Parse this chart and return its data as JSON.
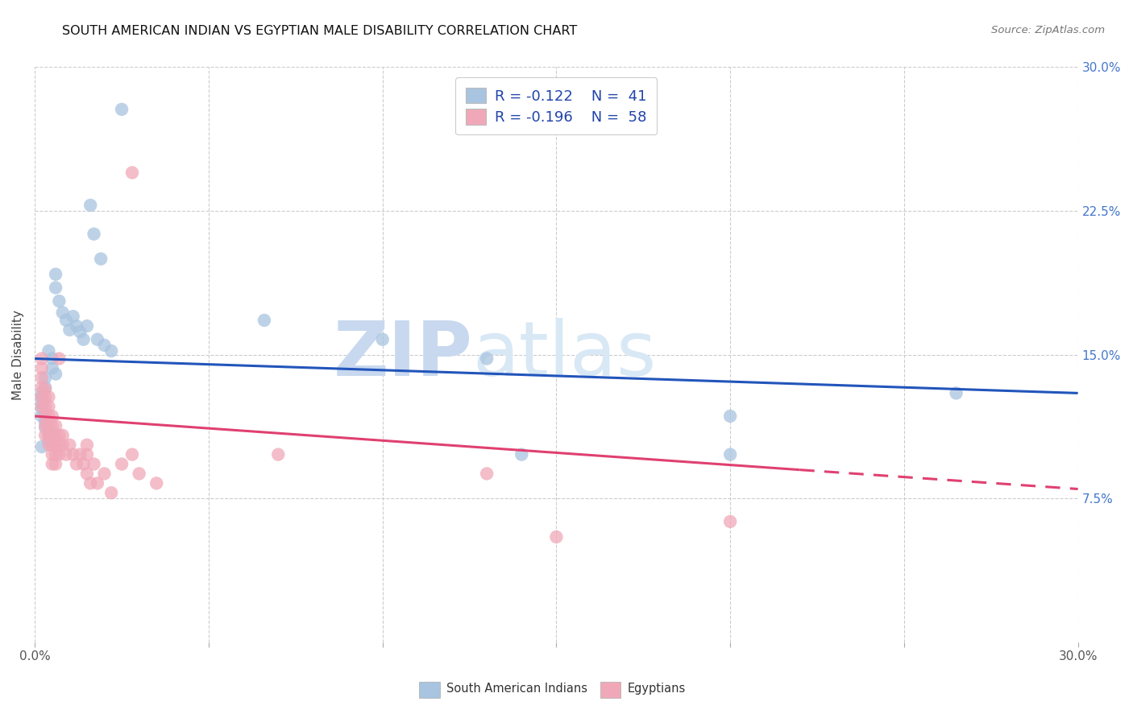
{
  "title": "SOUTH AMERICAN INDIAN VS EGYPTIAN MALE DISABILITY CORRELATION CHART",
  "source": "Source: ZipAtlas.com",
  "ylabel": "Male Disability",
  "xlim": [
    0.0,
    0.3
  ],
  "ylim": [
    0.0,
    0.3
  ],
  "ytick_vals": [
    0.075,
    0.15,
    0.225,
    0.3
  ],
  "ytick_labels": [
    "7.5%",
    "15.0%",
    "22.5%",
    "30.0%"
  ],
  "xtick_vals": [
    0.0,
    0.05,
    0.1,
    0.15,
    0.2,
    0.25,
    0.3
  ],
  "xtick_labels": [
    "0.0%",
    "",
    "",
    "",
    "",
    "",
    "30.0%"
  ],
  "watermark_zip": "ZIP",
  "watermark_atlas": "atlas",
  "legend_r1": "R = -0.122",
  "legend_n1": "N =  41",
  "legend_r2": "R = -0.196",
  "legend_n2": "N =  58",
  "blue_fill": "#a8c4e0",
  "pink_fill": "#f0a8b8",
  "line_blue_color": "#2255bb",
  "line_pink_color": "#e04070",
  "blue_scatter": [
    [
      0.025,
      0.278
    ],
    [
      0.016,
      0.228
    ],
    [
      0.017,
      0.213
    ],
    [
      0.019,
      0.2
    ],
    [
      0.006,
      0.192
    ],
    [
      0.006,
      0.185
    ],
    [
      0.007,
      0.178
    ],
    [
      0.008,
      0.172
    ],
    [
      0.009,
      0.168
    ],
    [
      0.01,
      0.163
    ],
    [
      0.011,
      0.17
    ],
    [
      0.012,
      0.165
    ],
    [
      0.013,
      0.162
    ],
    [
      0.014,
      0.158
    ],
    [
      0.015,
      0.165
    ],
    [
      0.018,
      0.158
    ],
    [
      0.02,
      0.155
    ],
    [
      0.022,
      0.152
    ],
    [
      0.004,
      0.152
    ],
    [
      0.005,
      0.148
    ],
    [
      0.005,
      0.143
    ],
    [
      0.006,
      0.14
    ],
    [
      0.003,
      0.138
    ],
    [
      0.003,
      0.133
    ],
    [
      0.002,
      0.13
    ],
    [
      0.002,
      0.128
    ],
    [
      0.002,
      0.125
    ],
    [
      0.002,
      0.122
    ],
    [
      0.002,
      0.118
    ],
    [
      0.003,
      0.115
    ],
    [
      0.003,
      0.112
    ],
    [
      0.004,
      0.108
    ],
    [
      0.004,
      0.105
    ],
    [
      0.002,
      0.102
    ],
    [
      0.066,
      0.168
    ],
    [
      0.1,
      0.158
    ],
    [
      0.13,
      0.148
    ],
    [
      0.14,
      0.098
    ],
    [
      0.2,
      0.118
    ],
    [
      0.2,
      0.098
    ],
    [
      0.265,
      0.13
    ]
  ],
  "pink_scatter": [
    [
      0.028,
      0.245
    ],
    [
      0.002,
      0.148
    ],
    [
      0.002,
      0.143
    ],
    [
      0.002,
      0.138
    ],
    [
      0.002,
      0.133
    ],
    [
      0.002,
      0.128
    ],
    [
      0.002,
      0.123
    ],
    [
      0.003,
      0.132
    ],
    [
      0.003,
      0.128
    ],
    [
      0.003,
      0.123
    ],
    [
      0.003,
      0.118
    ],
    [
      0.003,
      0.113
    ],
    [
      0.003,
      0.108
    ],
    [
      0.004,
      0.128
    ],
    [
      0.004,
      0.123
    ],
    [
      0.004,
      0.118
    ],
    [
      0.004,
      0.113
    ],
    [
      0.004,
      0.108
    ],
    [
      0.004,
      0.103
    ],
    [
      0.005,
      0.118
    ],
    [
      0.005,
      0.113
    ],
    [
      0.005,
      0.108
    ],
    [
      0.005,
      0.103
    ],
    [
      0.005,
      0.098
    ],
    [
      0.005,
      0.093
    ],
    [
      0.006,
      0.113
    ],
    [
      0.006,
      0.108
    ],
    [
      0.006,
      0.103
    ],
    [
      0.006,
      0.098
    ],
    [
      0.006,
      0.093
    ],
    [
      0.007,
      0.148
    ],
    [
      0.007,
      0.108
    ],
    [
      0.007,
      0.103
    ],
    [
      0.007,
      0.098
    ],
    [
      0.008,
      0.108
    ],
    [
      0.008,
      0.103
    ],
    [
      0.009,
      0.098
    ],
    [
      0.01,
      0.103
    ],
    [
      0.011,
      0.098
    ],
    [
      0.012,
      0.093
    ],
    [
      0.013,
      0.098
    ],
    [
      0.014,
      0.093
    ],
    [
      0.015,
      0.103
    ],
    [
      0.015,
      0.098
    ],
    [
      0.015,
      0.088
    ],
    [
      0.016,
      0.083
    ],
    [
      0.017,
      0.093
    ],
    [
      0.018,
      0.083
    ],
    [
      0.02,
      0.088
    ],
    [
      0.022,
      0.078
    ],
    [
      0.025,
      0.093
    ],
    [
      0.028,
      0.098
    ],
    [
      0.03,
      0.088
    ],
    [
      0.035,
      0.083
    ],
    [
      0.07,
      0.098
    ],
    [
      0.13,
      0.088
    ],
    [
      0.15,
      0.055
    ],
    [
      0.2,
      0.063
    ]
  ],
  "blue_line": [
    [
      0.0,
      0.148
    ],
    [
      0.3,
      0.13
    ]
  ],
  "pink_line_solid": [
    [
      0.0,
      0.118
    ],
    [
      0.22,
      0.09
    ]
  ],
  "pink_line_dashed": [
    [
      0.22,
      0.09
    ],
    [
      0.3,
      0.08
    ]
  ]
}
